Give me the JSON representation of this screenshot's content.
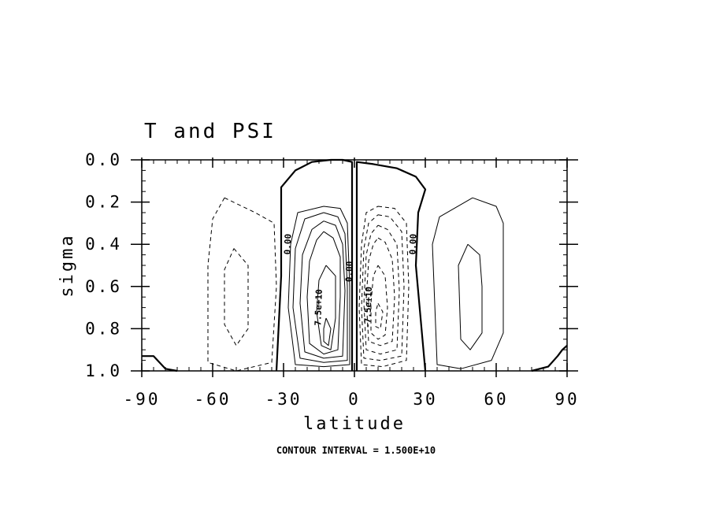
{
  "chart_data": {
    "type": "contour",
    "title": "T and PSI",
    "xlabel": "latitude",
    "ylabel": "sigma",
    "footer": "CONTOUR INTERVAL = 1.500E+10",
    "x_ticks": [
      "-90",
      "-60",
      "-30",
      "0",
      "30",
      "60",
      "90"
    ],
    "x_tick_values": [
      -90,
      -60,
      -30,
      0,
      30,
      60,
      90
    ],
    "y_ticks": [
      "0.0",
      "0.2",
      "0.4",
      "0.6",
      "0.8",
      "1.0"
    ],
    "y_tick_values": [
      0.0,
      0.2,
      0.4,
      0.6,
      0.8,
      1.0
    ],
    "xlim": [
      -90,
      90
    ],
    "ylim": [
      1.0,
      0.0
    ],
    "contour_interval": 15000000000.0,
    "contour_labels": [
      {
        "text": "0.00",
        "x": -27,
        "y": 0.4
      },
      {
        "text": "0.00",
        "x": -1,
        "y": 0.53
      },
      {
        "text": "0.00",
        "x": 26,
        "y": 0.4
      },
      {
        "text": "7.5e+10",
        "x": -14,
        "y": 0.7
      },
      {
        "text": "-7.5e+10",
        "x": 7,
        "y": 0.7
      }
    ],
    "contours": [
      {
        "level": 0,
        "style": "thick",
        "points": [
          [
            -33,
            1.0
          ],
          [
            -31,
            0.55
          ],
          [
            -31,
            0.13
          ],
          [
            -25,
            0.05
          ],
          [
            -18,
            0.01
          ],
          [
            -10,
            0.0
          ],
          [
            -5,
            0.0
          ],
          [
            -1,
            0.01
          ],
          [
            -1,
            0.3
          ],
          [
            -1,
            0.55
          ],
          [
            -1,
            0.75
          ],
          [
            -1,
            1.0
          ]
        ]
      },
      {
        "level": 0,
        "style": "thick",
        "points": [
          [
            1,
            1.0
          ],
          [
            1,
            0.6
          ],
          [
            1,
            0.35
          ],
          [
            1,
            0.01
          ],
          [
            8,
            0.02
          ],
          [
            18,
            0.04
          ],
          [
            26,
            0.08
          ],
          [
            30,
            0.14
          ],
          [
            27,
            0.25
          ],
          [
            26,
            0.5
          ],
          [
            30,
            1.0
          ]
        ]
      },
      {
        "level": 0,
        "style": "thick",
        "points": [
          [
            -90,
            0.93
          ],
          [
            -85,
            0.93
          ],
          [
            -80,
            0.99
          ],
          [
            -75,
            1.0
          ]
        ]
      },
      {
        "level": 0,
        "style": "thick",
        "points": [
          [
            75,
            1.0
          ],
          [
            82,
            0.98
          ],
          [
            86,
            0.93
          ],
          [
            88,
            0.9
          ],
          [
            90,
            0.88
          ]
        ]
      },
      {
        "level": 15000000000.0,
        "style": "solid",
        "points": [
          [
            -13,
            0.22
          ],
          [
            -6,
            0.23
          ],
          [
            -3,
            0.3
          ],
          [
            -2,
            0.6
          ],
          [
            -2,
            0.97
          ],
          [
            -13,
            0.98
          ],
          [
            -25,
            0.97
          ],
          [
            -28,
            0.7
          ],
          [
            -27,
            0.4
          ],
          [
            -24,
            0.25
          ],
          [
            -13,
            0.22
          ]
        ]
      },
      {
        "level": 30000000000.0,
        "style": "solid",
        "points": [
          [
            -13,
            0.25
          ],
          [
            -7,
            0.27
          ],
          [
            -4,
            0.35
          ],
          [
            -3,
            0.6
          ],
          [
            -3,
            0.95
          ],
          [
            -13,
            0.96
          ],
          [
            -23,
            0.94
          ],
          [
            -26,
            0.7
          ],
          [
            -25,
            0.42
          ],
          [
            -21,
            0.28
          ],
          [
            -13,
            0.25
          ]
        ]
      },
      {
        "level": 45000000000.0,
        "style": "solid",
        "points": [
          [
            -13,
            0.29
          ],
          [
            -8,
            0.31
          ],
          [
            -5,
            0.4
          ],
          [
            -4,
            0.62
          ],
          [
            -5,
            0.93
          ],
          [
            -13,
            0.94
          ],
          [
            -21,
            0.91
          ],
          [
            -23,
            0.68
          ],
          [
            -22,
            0.45
          ],
          [
            -18,
            0.33
          ],
          [
            -13,
            0.29
          ]
        ]
      },
      {
        "level": 60000000000.0,
        "style": "solid",
        "points": [
          [
            -13,
            0.34
          ],
          [
            -9,
            0.37
          ],
          [
            -6,
            0.46
          ],
          [
            -6,
            0.65
          ],
          [
            -7,
            0.9
          ],
          [
            -13,
            0.92
          ],
          [
            -19,
            0.87
          ],
          [
            -20,
            0.65
          ],
          [
            -19,
            0.48
          ],
          [
            -16,
            0.38
          ],
          [
            -13,
            0.34
          ]
        ]
      },
      {
        "level": 75000000000.0,
        "style": "solid",
        "points": [
          [
            -12,
            0.5
          ],
          [
            -8,
            0.55
          ],
          [
            -8,
            0.75
          ],
          [
            -10,
            0.9
          ],
          [
            -14,
            0.88
          ],
          [
            -16,
            0.72
          ],
          [
            -15,
            0.57
          ],
          [
            -12,
            0.5
          ]
        ]
      },
      {
        "level": 90000000000.0,
        "style": "solid",
        "points": [
          [
            -12,
            0.75
          ],
          [
            -10,
            0.8
          ],
          [
            -11,
            0.88
          ],
          [
            -13,
            0.86
          ],
          [
            -13,
            0.8
          ],
          [
            -12,
            0.75
          ]
        ]
      },
      {
        "level": -15000000000.0,
        "style": "dashed",
        "points": [
          [
            10,
            0.22
          ],
          [
            17,
            0.23
          ],
          [
            22,
            0.3
          ],
          [
            23,
            0.6
          ],
          [
            22,
            0.95
          ],
          [
            12,
            0.98
          ],
          [
            3,
            0.97
          ],
          [
            2,
            0.7
          ],
          [
            3,
            0.4
          ],
          [
            5,
            0.25
          ],
          [
            10,
            0.22
          ]
        ]
      },
      {
        "level": -30000000000.0,
        "style": "dashed",
        "points": [
          [
            10,
            0.26
          ],
          [
            15,
            0.27
          ],
          [
            20,
            0.34
          ],
          [
            21,
            0.6
          ],
          [
            20,
            0.93
          ],
          [
            11,
            0.95
          ],
          [
            4,
            0.94
          ],
          [
            3,
            0.7
          ],
          [
            4,
            0.42
          ],
          [
            6,
            0.3
          ],
          [
            10,
            0.26
          ]
        ]
      },
      {
        "level": -45000000000.0,
        "style": "dashed",
        "points": [
          [
            10,
            0.31
          ],
          [
            14,
            0.33
          ],
          [
            18,
            0.4
          ],
          [
            19,
            0.62
          ],
          [
            18,
            0.9
          ],
          [
            11,
            0.92
          ],
          [
            5,
            0.9
          ],
          [
            4,
            0.68
          ],
          [
            5,
            0.45
          ],
          [
            7,
            0.35
          ],
          [
            10,
            0.31
          ]
        ]
      },
      {
        "level": -60000000000.0,
        "style": "dashed",
        "points": [
          [
            10,
            0.37
          ],
          [
            13,
            0.39
          ],
          [
            16,
            0.47
          ],
          [
            17,
            0.65
          ],
          [
            16,
            0.86
          ],
          [
            11,
            0.88
          ],
          [
            6,
            0.86
          ],
          [
            5,
            0.66
          ],
          [
            6,
            0.48
          ],
          [
            8,
            0.4
          ],
          [
            10,
            0.37
          ]
        ]
      },
      {
        "level": -75000000000.0,
        "style": "dashed",
        "points": [
          [
            10,
            0.5
          ],
          [
            13,
            0.55
          ],
          [
            14,
            0.7
          ],
          [
            13,
            0.83
          ],
          [
            10,
            0.85
          ],
          [
            7,
            0.82
          ],
          [
            7,
            0.68
          ],
          [
            8,
            0.55
          ],
          [
            10,
            0.5
          ]
        ]
      },
      {
        "level": -90000000000.0,
        "style": "dashed",
        "points": [
          [
            10,
            0.68
          ],
          [
            12,
            0.72
          ],
          [
            11,
            0.8
          ],
          [
            9,
            0.79
          ],
          [
            9,
            0.72
          ],
          [
            10,
            0.68
          ]
        ]
      },
      {
        "level": -15000000000.0,
        "style": "dashed",
        "points": [
          [
            -55,
            0.18
          ],
          [
            -42,
            0.25
          ],
          [
            -34,
            0.3
          ],
          [
            -33,
            0.6
          ],
          [
            -35,
            0.96
          ],
          [
            -50,
            1.0
          ],
          [
            -62,
            0.96
          ],
          [
            -62,
            0.5
          ],
          [
            -60,
            0.28
          ],
          [
            -55,
            0.18
          ]
        ]
      },
      {
        "level": -30000000000.0,
        "style": "dashed",
        "points": [
          [
            -51,
            0.42
          ],
          [
            -45,
            0.5
          ],
          [
            -45,
            0.8
          ],
          [
            -50,
            0.88
          ],
          [
            -55,
            0.78
          ],
          [
            -55,
            0.52
          ],
          [
            -51,
            0.42
          ]
        ]
      },
      {
        "level": 15000000000.0,
        "style": "solid",
        "points": [
          [
            50,
            0.18
          ],
          [
            60,
            0.22
          ],
          [
            63,
            0.3
          ],
          [
            63,
            0.82
          ],
          [
            58,
            0.95
          ],
          [
            45,
            0.99
          ],
          [
            35,
            0.97
          ],
          [
            33,
            0.4
          ],
          [
            36,
            0.27
          ],
          [
            50,
            0.18
          ]
        ]
      },
      {
        "level": 30000000000.0,
        "style": "solid",
        "points": [
          [
            48,
            0.4
          ],
          [
            53,
            0.45
          ],
          [
            54,
            0.6
          ],
          [
            54,
            0.82
          ],
          [
            49,
            0.9
          ],
          [
            45,
            0.85
          ],
          [
            44,
            0.5
          ],
          [
            48,
            0.4
          ]
        ]
      }
    ]
  }
}
